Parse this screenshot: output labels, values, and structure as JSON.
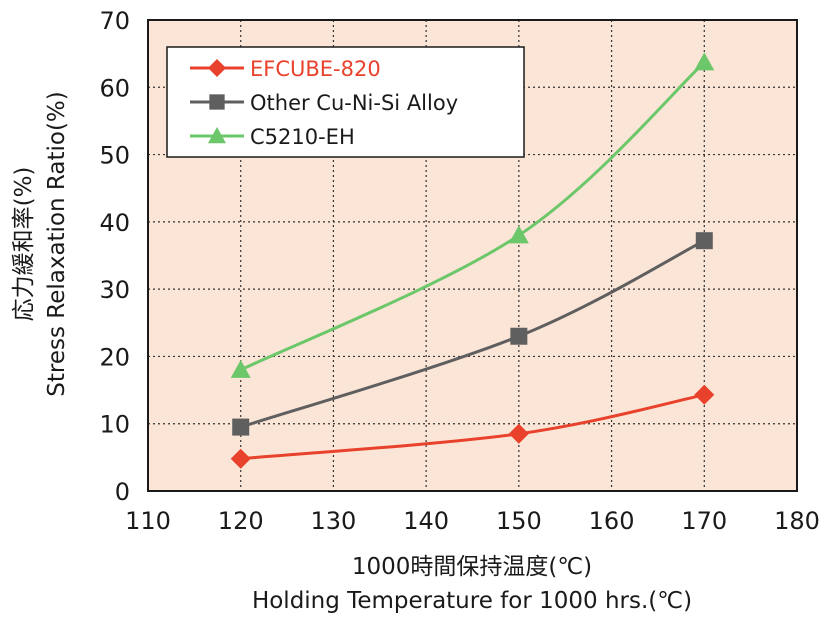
{
  "chart_data": {
    "type": "line",
    "x": [
      120,
      150,
      170
    ],
    "series": [
      {
        "name": "EFCUBE-820",
        "values": [
          4.8,
          8.5,
          14.3
        ],
        "color": "#e8412c",
        "marker": "diamond",
        "label_color": "#e8412c"
      },
      {
        "name": "Other Cu-Ni-Si Alloy",
        "values": [
          9.5,
          23.0,
          37.2
        ],
        "color": "#5f5f5f",
        "marker": "square",
        "label_color": "#1a1a1a"
      },
      {
        "name": "C5210-EH",
        "values": [
          18.0,
          38.0,
          63.7
        ],
        "color": "#6cc76a",
        "marker": "triangle",
        "label_color": "#1a1a1a"
      }
    ],
    "xlim": [
      110,
      180
    ],
    "ylim": [
      0,
      70
    ],
    "xticks": [
      "110",
      "120",
      "130",
      "140",
      "150",
      "160",
      "170",
      "180"
    ],
    "yticks": [
      "0",
      "10",
      "20",
      "30",
      "40",
      "50",
      "60",
      "70"
    ],
    "xlabel_jp": "1000時間保持温度(℃)",
    "xlabel": "Holding Temperature for 1000 hrs.(℃)",
    "ylabel_jp": "応力緩和率(%)",
    "ylabel": "Stress Relaxation Ratio(%)",
    "grid": true,
    "legend_position": "top-left",
    "plot_background": "#fbe5d6"
  }
}
